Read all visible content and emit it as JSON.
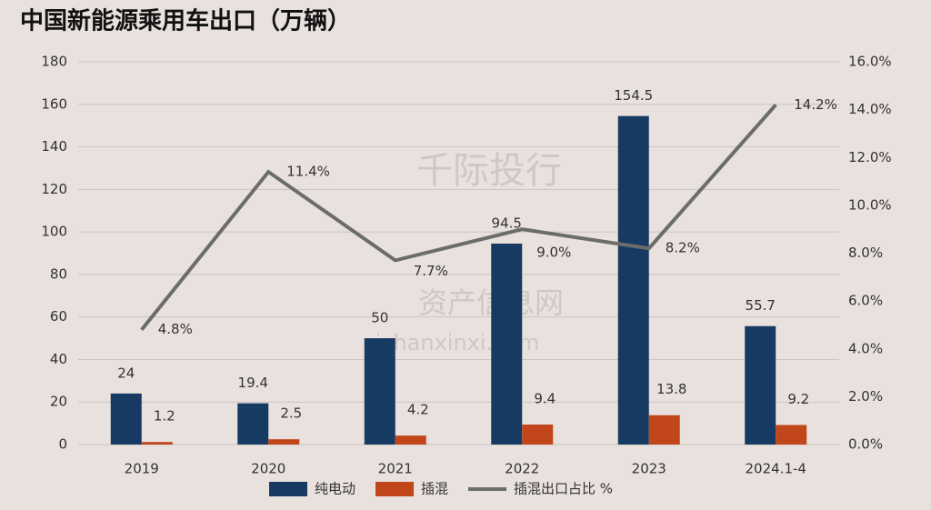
{
  "chart_data": {
    "type": "bar_line",
    "title": "中国新能源乘用车出口（万辆）",
    "categories": [
      "2019",
      "2020",
      "2021",
      "2022",
      "2023",
      "2024.1-4"
    ],
    "series": [
      {
        "name": "纯电动",
        "type": "bar",
        "color": "#173a63",
        "values": [
          24,
          19.4,
          50,
          94.5,
          154.5,
          55.7
        ]
      },
      {
        "name": "插混",
        "type": "bar",
        "color": "#c2461b",
        "values": [
          1.2,
          2.5,
          4.2,
          9.4,
          13.8,
          9.2
        ]
      },
      {
        "name": "插混出口占比 %",
        "type": "line",
        "axis": "y2",
        "color": "#6b6d69",
        "values": [
          4.8,
          11.4,
          7.7,
          9.0,
          8.2,
          14.2
        ],
        "value_labels": [
          "4.8%",
          "11.4%",
          "7.7%",
          "9.0%",
          "8.2%",
          "14.2%"
        ]
      }
    ],
    "ylim": [
      0,
      180
    ],
    "yticks": [
      0,
      20,
      40,
      60,
      80,
      100,
      120,
      140,
      160,
      180
    ],
    "y2lim": [
      0,
      16
    ],
    "y2ticks": [
      {
        "value": 0,
        "label": "0.0%"
      },
      {
        "value": 2,
        "label": "2.0%"
      },
      {
        "value": 4,
        "label": "4.0%"
      },
      {
        "value": 6,
        "label": "6.0%"
      },
      {
        "value": 8,
        "label": "8.0%"
      },
      {
        "value": 10,
        "label": "10.0%"
      },
      {
        "value": 12,
        "label": "12.0%"
      },
      {
        "value": 14,
        "label": "14.0%"
      },
      {
        "value": 16,
        "label": "16.0%"
      }
    ],
    "grid": true,
    "legend": "bottom",
    "watermark_texts": [
      "千际投行",
      "资产信息网",
      "zichanxinxi.com"
    ]
  }
}
